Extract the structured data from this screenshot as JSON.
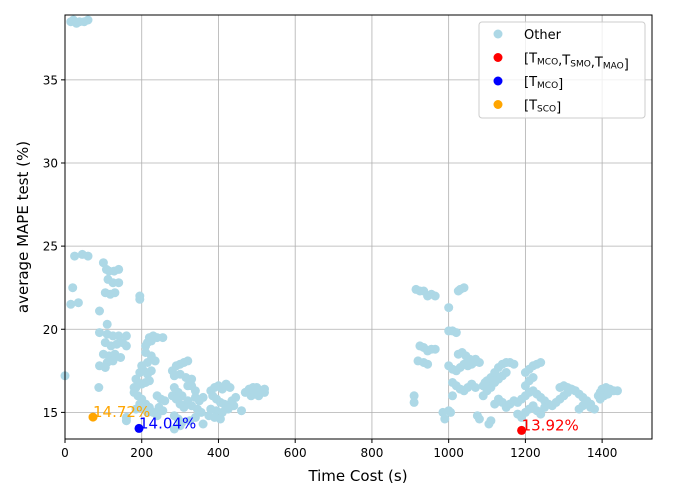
{
  "chart_data": {
    "type": "scatter",
    "xlabel": "Time Cost (s)",
    "ylabel": "average MAPE test (%)",
    "xlim": [
      0,
      1530
    ],
    "ylim": [
      13.4,
      38.9
    ],
    "xticks": [
      0,
      200,
      400,
      600,
      800,
      1000,
      1200,
      1400
    ],
    "yticks": [
      15,
      20,
      25,
      30,
      35
    ],
    "grid": true,
    "legend_position": "top-right",
    "colors": {
      "other": "#add8e6",
      "red": "#ff0000",
      "blue": "#0000ff",
      "orange": "#ffa500"
    },
    "series": [
      {
        "name": "Other",
        "label_parts": [
          {
            "t": "Other"
          }
        ],
        "color": "#add8e6",
        "points": [
          [
            0,
            17.2
          ],
          [
            15,
            38.5
          ],
          [
            22,
            38.6
          ],
          [
            30,
            38.4
          ],
          [
            38,
            38.5
          ],
          [
            50,
            38.5
          ],
          [
            60,
            38.6
          ],
          [
            25,
            24.4
          ],
          [
            45,
            24.5
          ],
          [
            60,
            24.4
          ],
          [
            20,
            22.5
          ],
          [
            15,
            21.5
          ],
          [
            35,
            21.6
          ],
          [
            100,
            24.0
          ],
          [
            108,
            23.6
          ],
          [
            115,
            23.5
          ],
          [
            128,
            23.5
          ],
          [
            140,
            23.6
          ],
          [
            112,
            23.0
          ],
          [
            125,
            22.8
          ],
          [
            140,
            22.8
          ],
          [
            105,
            22.2
          ],
          [
            118,
            22.1
          ],
          [
            130,
            22.2
          ],
          [
            90,
            21.1
          ],
          [
            110,
            20.3
          ],
          [
            90,
            19.8
          ],
          [
            110,
            19.7
          ],
          [
            125,
            19.6
          ],
          [
            140,
            19.6
          ],
          [
            160,
            19.6
          ],
          [
            105,
            19.2
          ],
          [
            120,
            19.0
          ],
          [
            135,
            19.1
          ],
          [
            150,
            19.2
          ],
          [
            160,
            19.0
          ],
          [
            100,
            18.5
          ],
          [
            115,
            18.4
          ],
          [
            130,
            18.5
          ],
          [
            145,
            18.3
          ],
          [
            125,
            18.1
          ],
          [
            110,
            18.0
          ],
          [
            90,
            17.8
          ],
          [
            105,
            17.7
          ],
          [
            88,
            16.5
          ],
          [
            195,
            22.0
          ],
          [
            195,
            21.8
          ],
          [
            210,
            19.0
          ],
          [
            220,
            19.5
          ],
          [
            230,
            19.6
          ],
          [
            240,
            19.5
          ],
          [
            255,
            19.5
          ],
          [
            215,
            19.2
          ],
          [
            225,
            19.3
          ],
          [
            210,
            18.6
          ],
          [
            225,
            18.4
          ],
          [
            235,
            18.1
          ],
          [
            215,
            18.0
          ],
          [
            200,
            17.8
          ],
          [
            195,
            17.4
          ],
          [
            205,
            17.5
          ],
          [
            215,
            17.3
          ],
          [
            225,
            17.5
          ],
          [
            185,
            17.0
          ],
          [
            190,
            16.8
          ],
          [
            200,
            16.7
          ],
          [
            185,
            16.5
          ],
          [
            210,
            16.8
          ],
          [
            220,
            16.9
          ],
          [
            180,
            16.5
          ],
          [
            180,
            16.2
          ],
          [
            190,
            16.0
          ],
          [
            200,
            15.8
          ],
          [
            210,
            15.5
          ],
          [
            220,
            15.3
          ],
          [
            185,
            15.2
          ],
          [
            195,
            15.5
          ],
          [
            205,
            15.2
          ],
          [
            215,
            15.0
          ],
          [
            240,
            16.0
          ],
          [
            250,
            15.8
          ],
          [
            260,
            15.7
          ],
          [
            245,
            15.3
          ],
          [
            255,
            15.1
          ],
          [
            240,
            14.8
          ],
          [
            160,
            14.7
          ],
          [
            160,
            14.5
          ],
          [
            230,
            15.0
          ],
          [
            280,
            17.5
          ],
          [
            290,
            17.8
          ],
          [
            300,
            17.9
          ],
          [
            310,
            18.0
          ],
          [
            320,
            18.1
          ],
          [
            285,
            17.2
          ],
          [
            300,
            17.3
          ],
          [
            315,
            17.1
          ],
          [
            330,
            17.0
          ],
          [
            285,
            16.5
          ],
          [
            295,
            16.2
          ],
          [
            305,
            16.0
          ],
          [
            320,
            16.6
          ],
          [
            330,
            16.6
          ],
          [
            340,
            16.3
          ],
          [
            280,
            16.0
          ],
          [
            290,
            15.8
          ],
          [
            300,
            15.5
          ],
          [
            310,
            15.3
          ],
          [
            320,
            15.7
          ],
          [
            330,
            15.4
          ],
          [
            340,
            15.9
          ],
          [
            350,
            15.7
          ],
          [
            360,
            15.9
          ],
          [
            345,
            15.2
          ],
          [
            355,
            15.0
          ],
          [
            285,
            14.8
          ],
          [
            295,
            14.6
          ],
          [
            305,
            14.4
          ],
          [
            285,
            14.0
          ],
          [
            300,
            14.2
          ],
          [
            325,
            14.5
          ],
          [
            340,
            14.7
          ],
          [
            360,
            14.3
          ],
          [
            380,
            16.3
          ],
          [
            390,
            16.5
          ],
          [
            400,
            16.6
          ],
          [
            410,
            16.4
          ],
          [
            420,
            16.7
          ],
          [
            430,
            16.5
          ],
          [
            385,
            16.0
          ],
          [
            395,
            15.8
          ],
          [
            405,
            15.6
          ],
          [
            415,
            15.5
          ],
          [
            425,
            15.3
          ],
          [
            435,
            15.7
          ],
          [
            445,
            15.9
          ],
          [
            380,
            15.2
          ],
          [
            395,
            15.1
          ],
          [
            410,
            15.0
          ],
          [
            425,
            15.2
          ],
          [
            440,
            15.4
          ],
          [
            375,
            14.8
          ],
          [
            390,
            14.7
          ],
          [
            405,
            14.6
          ],
          [
            460,
            15.1
          ],
          [
            470,
            16.2
          ],
          [
            480,
            16.4
          ],
          [
            490,
            16.5
          ],
          [
            500,
            16.5
          ],
          [
            510,
            16.3
          ],
          [
            520,
            16.4
          ],
          [
            485,
            16.0
          ],
          [
            495,
            16.1
          ],
          [
            505,
            16.0
          ],
          [
            520,
            16.2
          ],
          [
            910,
            16.0
          ],
          [
            910,
            15.6
          ],
          [
            915,
            22.4
          ],
          [
            925,
            22.3
          ],
          [
            935,
            22.3
          ],
          [
            945,
            22.0
          ],
          [
            955,
            22.1
          ],
          [
            965,
            22.0
          ],
          [
            925,
            19.0
          ],
          [
            935,
            18.9
          ],
          [
            945,
            18.7
          ],
          [
            955,
            18.8
          ],
          [
            965,
            18.8
          ],
          [
            920,
            18.1
          ],
          [
            935,
            18.0
          ],
          [
            945,
            17.9
          ],
          [
            985,
            15.0
          ],
          [
            990,
            14.6
          ],
          [
            1000,
            15.1
          ],
          [
            1005,
            15.0
          ],
          [
            1010,
            16.0
          ],
          [
            1000,
            21.3
          ],
          [
            1000,
            19.9
          ],
          [
            1010,
            19.9
          ],
          [
            1020,
            19.8
          ],
          [
            1025,
            22.3
          ],
          [
            1030,
            22.4
          ],
          [
            1040,
            22.5
          ],
          [
            1000,
            17.8
          ],
          [
            1010,
            17.6
          ],
          [
            1020,
            17.5
          ],
          [
            1030,
            17.7
          ],
          [
            1040,
            17.9
          ],
          [
            1050,
            17.8
          ],
          [
            1060,
            17.9
          ],
          [
            1070,
            18.2
          ],
          [
            1080,
            18.0
          ],
          [
            1010,
            16.8
          ],
          [
            1020,
            16.6
          ],
          [
            1030,
            16.4
          ],
          [
            1040,
            16.3
          ],
          [
            1050,
            16.5
          ],
          [
            1060,
            16.7
          ],
          [
            1070,
            16.5
          ],
          [
            1025,
            18.5
          ],
          [
            1035,
            18.6
          ],
          [
            1045,
            18.4
          ],
          [
            1055,
            18.2
          ],
          [
            1065,
            18.0
          ],
          [
            1075,
            14.8
          ],
          [
            1080,
            14.6
          ],
          [
            1105,
            14.3
          ],
          [
            1110,
            14.5
          ],
          [
            1090,
            16.0
          ],
          [
            1100,
            16.3
          ],
          [
            1110,
            16.5
          ],
          [
            1120,
            16.8
          ],
          [
            1130,
            17.0
          ],
          [
            1140,
            17.2
          ],
          [
            1150,
            17.4
          ],
          [
            1100,
            16.9
          ],
          [
            1110,
            17.1
          ],
          [
            1120,
            17.4
          ],
          [
            1130,
            17.7
          ],
          [
            1140,
            17.9
          ],
          [
            1150,
            18.0
          ],
          [
            1160,
            18.0
          ],
          [
            1170,
            17.9
          ],
          [
            1090,
            16.6
          ],
          [
            1095,
            16.8
          ],
          [
            1120,
            15.5
          ],
          [
            1130,
            15.8
          ],
          [
            1140,
            15.6
          ],
          [
            1150,
            15.3
          ],
          [
            1160,
            15.5
          ],
          [
            1170,
            15.7
          ],
          [
            1180,
            15.6
          ],
          [
            1190,
            15.8
          ],
          [
            1200,
            16.0
          ],
          [
            1210,
            16.2
          ],
          [
            1220,
            16.3
          ],
          [
            1230,
            16.1
          ],
          [
            1240,
            15.9
          ],
          [
            1250,
            15.7
          ],
          [
            1260,
            15.5
          ],
          [
            1270,
            15.4
          ],
          [
            1280,
            15.6
          ],
          [
            1290,
            15.8
          ],
          [
            1300,
            16.0
          ],
          [
            1310,
            16.2
          ],
          [
            1320,
            16.4
          ],
          [
            1330,
            16.3
          ],
          [
            1340,
            16.1
          ],
          [
            1350,
            15.9
          ],
          [
            1360,
            15.7
          ],
          [
            1370,
            15.5
          ],
          [
            1200,
            17.4
          ],
          [
            1210,
            17.6
          ],
          [
            1220,
            17.8
          ],
          [
            1230,
            17.9
          ],
          [
            1240,
            18.0
          ],
          [
            1200,
            16.6
          ],
          [
            1210,
            16.9
          ],
          [
            1220,
            17.1
          ],
          [
            1180,
            14.9
          ],
          [
            1190,
            14.7
          ],
          [
            1200,
            15.0
          ],
          [
            1210,
            15.2
          ],
          [
            1220,
            15.4
          ],
          [
            1230,
            15.1
          ],
          [
            1240,
            14.9
          ],
          [
            1250,
            15.3
          ],
          [
            1290,
            16.5
          ],
          [
            1300,
            16.6
          ],
          [
            1310,
            16.5
          ],
          [
            1320,
            16.4
          ],
          [
            1330,
            16.3
          ],
          [
            1340,
            15.2
          ],
          [
            1350,
            15.4
          ],
          [
            1360,
            15.6
          ],
          [
            1370,
            15.3
          ],
          [
            1380,
            15.2
          ],
          [
            1390,
            16.0
          ],
          [
            1395,
            16.2
          ],
          [
            1400,
            16.4
          ],
          [
            1410,
            16.5
          ],
          [
            1420,
            16.4
          ],
          [
            1430,
            16.3
          ],
          [
            1440,
            16.3
          ],
          [
            1395,
            15.8
          ],
          [
            1405,
            16.0
          ],
          [
            1415,
            16.1
          ]
        ]
      },
      {
        "name": "[TMCO,TSMO,TMAO]",
        "label_parts": [
          {
            "t": "[T"
          },
          {
            "s": "MCO"
          },
          {
            "t": ",T"
          },
          {
            "s": "SMO"
          },
          {
            "t": ",T"
          },
          {
            "s": "MAO"
          },
          {
            "t": "]"
          }
        ],
        "color": "#ff0000",
        "points": [
          [
            1190,
            13.92
          ]
        ]
      },
      {
        "name": "[TMCO]",
        "label_parts": [
          {
            "t": "[T"
          },
          {
            "s": "MCO"
          },
          {
            "t": "]"
          }
        ],
        "color": "#0000ff",
        "points": [
          [
            193,
            14.04
          ]
        ]
      },
      {
        "name": "[TSCO]",
        "label_parts": [
          {
            "t": "[T"
          },
          {
            "s": "SCO"
          },
          {
            "t": "]"
          }
        ],
        "color": "#ffa500",
        "points": [
          [
            73,
            14.72
          ]
        ]
      }
    ],
    "annotations": [
      {
        "text": "14.72%",
        "x": 73,
        "y": 14.72,
        "color": "#ffa500"
      },
      {
        "text": "14.04%",
        "x": 193,
        "y": 14.04,
        "color": "#0000ff"
      },
      {
        "text": "13.92%",
        "x": 1190,
        "y": 13.92,
        "color": "#ff0000"
      }
    ]
  }
}
